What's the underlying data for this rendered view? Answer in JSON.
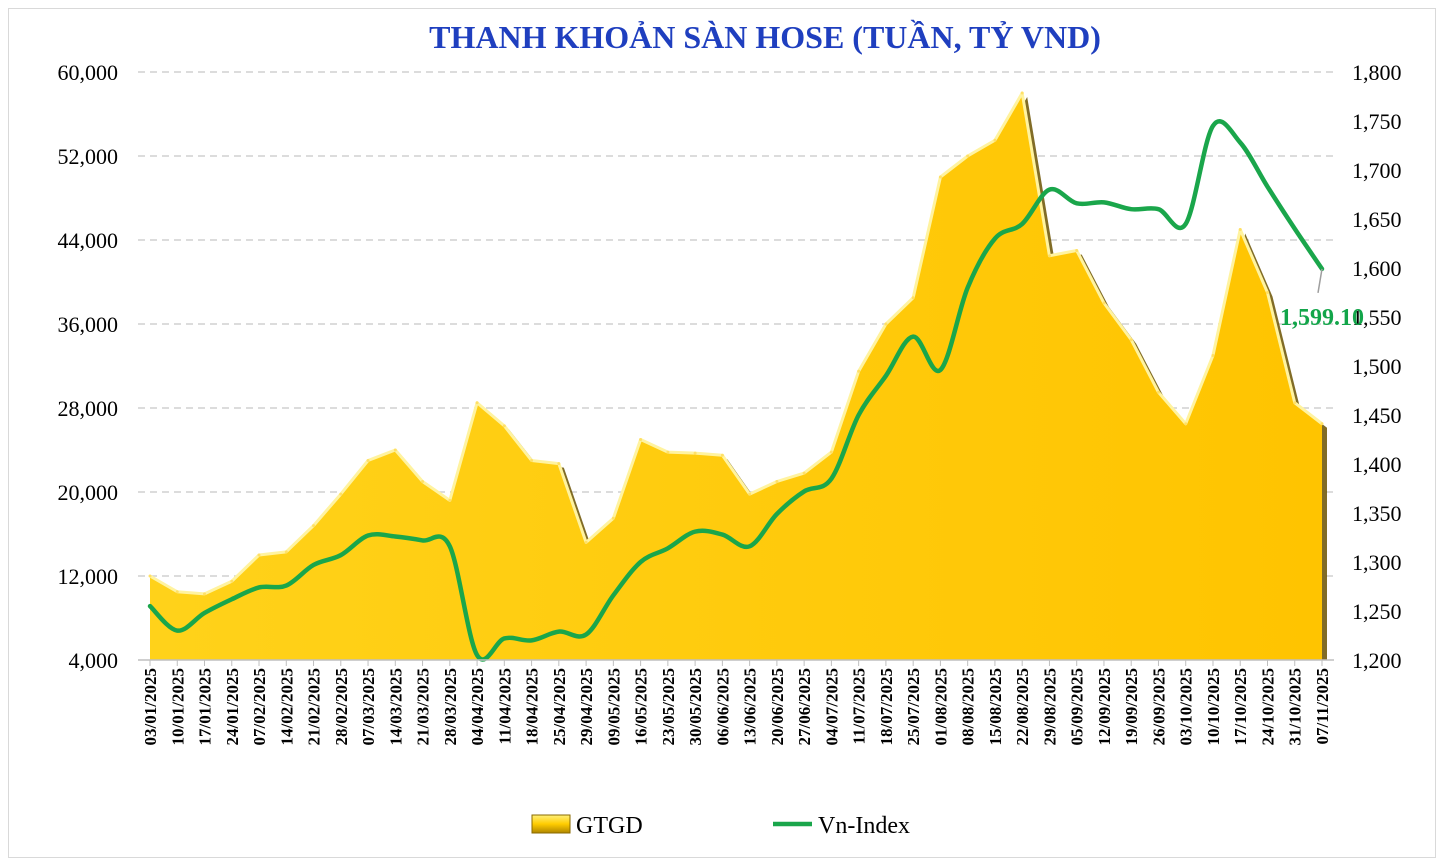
{
  "chart_data": {
    "type": "area",
    "title": "THANH KHOẢN SÀN HOSE (TUẦN, TỶ VND)",
    "x": [
      "03/01/2025",
      "10/01/2025",
      "17/01/2025",
      "24/01/2025",
      "07/02/2025",
      "14/02/2025",
      "21/02/2025",
      "28/02/2025",
      "07/03/2025",
      "14/03/2025",
      "21/03/2025",
      "28/03/2025",
      "04/04/2025",
      "11/04/2025",
      "18/04/2025",
      "25/04/2025",
      "29/04/2025",
      "09/05/2025",
      "16/05/2025",
      "23/05/2025",
      "30/05/2025",
      "06/06/2025",
      "13/06/2025",
      "20/06/2025",
      "27/06/2025",
      "04/07/2025",
      "11/07/2025",
      "18/07/2025",
      "25/07/2025",
      "01/08/2025",
      "08/08/2025",
      "15/08/2025",
      "22/08/2025",
      "29/08/2025",
      "05/09/2025",
      "12/09/2025",
      "19/09/2025",
      "26/09/2025",
      "03/10/2025",
      "10/10/2025",
      "17/10/2025",
      "24/10/2025",
      "31/10/2025",
      "07/11/2025"
    ],
    "series": [
      {
        "name": "GTGD",
        "axis": "left",
        "type": "area",
        "color": "#ffcc00",
        "values": [
          12000,
          10500,
          10300,
          11500,
          14000,
          14300,
          16800,
          19800,
          23000,
          24000,
          21000,
          19200,
          28500,
          26300,
          23000,
          22700,
          15200,
          17500,
          25000,
          23800,
          23700,
          23500,
          19800,
          21000,
          21800,
          23800,
          31500,
          36000,
          38500,
          50000,
          52000,
          53500,
          58000,
          42500,
          43000,
          38000,
          34500,
          29500,
          26500,
          33000,
          45000,
          39000,
          28500,
          26500
        ]
      },
      {
        "name": "Vn-Index",
        "axis": "right",
        "type": "line",
        "color": "#1aa64b",
        "values": [
          1255,
          1230,
          1248,
          1262,
          1274,
          1276,
          1297,
          1307,
          1327,
          1326,
          1322,
          1316,
          1205,
          1222,
          1220,
          1229,
          1226,
          1266,
          1300,
          1314,
          1331,
          1328,
          1316,
          1349,
          1372,
          1385,
          1450,
          1490,
          1530,
          1496,
          1580,
          1630,
          1645,
          1680,
          1666,
          1667,
          1660,
          1660,
          1645,
          1745,
          1728,
          1683,
          1640,
          1599.1
        ]
      }
    ],
    "y_left": {
      "min": 4000,
      "max": 60000,
      "ticks": [
        "4,000",
        "12,000",
        "20,000",
        "28,000",
        "36,000",
        "44,000",
        "52,000",
        "60,000"
      ]
    },
    "y_right": {
      "min": 1200,
      "max": 1800,
      "ticks": [
        "1,200",
        "1,250",
        "1,300",
        "1,350",
        "1,400",
        "1,450",
        "1,500",
        "1,550",
        "1,600",
        "1,650",
        "1,700",
        "1,750",
        "1,800"
      ]
    },
    "grid": true,
    "legend": "bottom",
    "annotation": {
      "label": "1,599.10",
      "series": "Vn-Index",
      "point": "last"
    }
  }
}
